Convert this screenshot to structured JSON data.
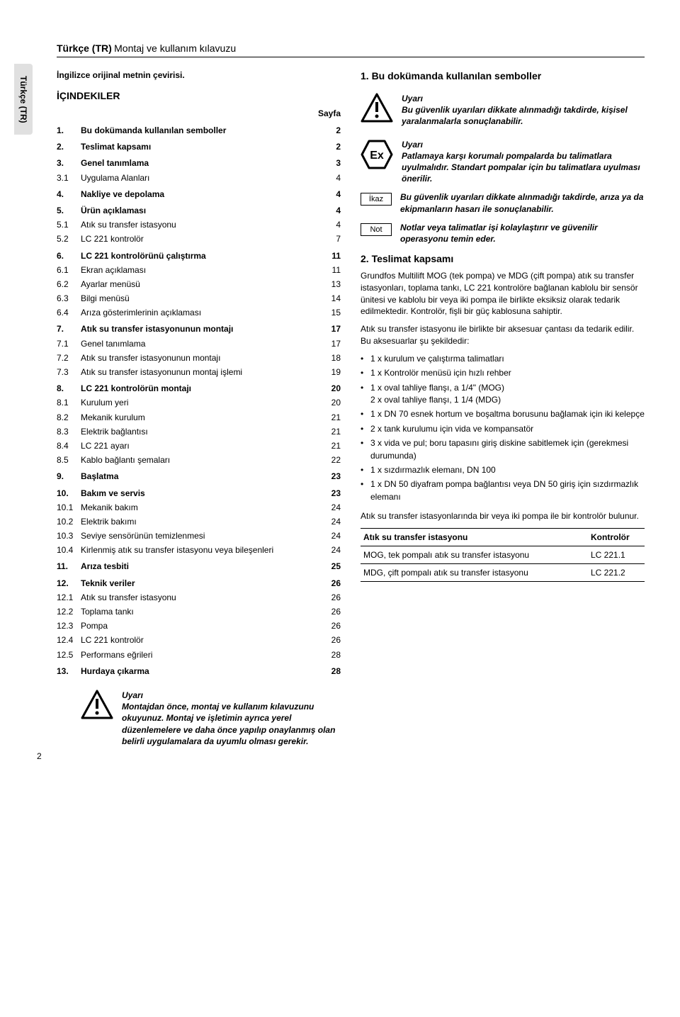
{
  "sidebar": {
    "label": "Türkçe (TR)"
  },
  "header": {
    "lang": "Türkçe (TR)",
    "title": "Montaj ve kullanım kılavuzu"
  },
  "left": {
    "subtitle": "İngilizce orijinal metnin çevirisi.",
    "toc_title": "İÇINDEKILER",
    "page_label": "Sayfa",
    "toc": [
      {
        "n": "1.",
        "t": "Bu dokümanda kullanılan semboller",
        "p": "2",
        "main": true
      },
      {
        "n": "2.",
        "t": "Teslimat kapsamı",
        "p": "2",
        "main": true
      },
      {
        "n": "3.",
        "t": "Genel tanımlama",
        "p": "3",
        "main": true
      },
      {
        "n": "3.1",
        "t": "Uygulama Alanları",
        "p": "4"
      },
      {
        "n": "4.",
        "t": "Nakliye ve depolama",
        "p": "4",
        "main": true
      },
      {
        "n": "5.",
        "t": "Ürün açıklaması",
        "p": "4",
        "main": true
      },
      {
        "n": "5.1",
        "t": "Atık su transfer istasyonu",
        "p": "4"
      },
      {
        "n": "5.2",
        "t": "LC 221 kontrolör",
        "p": "7"
      },
      {
        "n": "6.",
        "t": "LC 221 kontrolörünü çalıştırma",
        "p": "11",
        "main": true
      },
      {
        "n": "6.1",
        "t": "Ekran açıklaması",
        "p": "11"
      },
      {
        "n": "6.2",
        "t": "Ayarlar menüsü",
        "p": "13"
      },
      {
        "n": "6.3",
        "t": "Bilgi menüsü",
        "p": "14"
      },
      {
        "n": "6.4",
        "t": "Arıza gösterimlerinin açıklaması",
        "p": "15"
      },
      {
        "n": "7.",
        "t": "Atık su transfer istasyonunun montajı",
        "p": "17",
        "main": true
      },
      {
        "n": "7.1",
        "t": "Genel tanımlama",
        "p": "17"
      },
      {
        "n": "7.2",
        "t": "Atık su transfer istasyonunun montajı",
        "p": "18"
      },
      {
        "n": "7.3",
        "t": "Atık su transfer istasyonunun montaj işlemi",
        "p": "19"
      },
      {
        "n": "8.",
        "t": "LC 221 kontrolörün montajı",
        "p": "20",
        "main": true
      },
      {
        "n": "8.1",
        "t": "Kurulum yeri",
        "p": "20"
      },
      {
        "n": "8.2",
        "t": "Mekanik kurulum",
        "p": "21"
      },
      {
        "n": "8.3",
        "t": "Elektrik bağlantısı",
        "p": "21"
      },
      {
        "n": "8.4",
        "t": "LC 221 ayarı",
        "p": "21"
      },
      {
        "n": "8.5",
        "t": "Kablo bağlantı şemaları",
        "p": "22"
      },
      {
        "n": "9.",
        "t": "Başlatma",
        "p": "23",
        "main": true
      },
      {
        "n": "10.",
        "t": "Bakım ve servis",
        "p": "23",
        "main": true
      },
      {
        "n": "10.1",
        "t": "Mekanik bakım",
        "p": "24"
      },
      {
        "n": "10.2",
        "t": "Elektrik bakımı",
        "p": "24"
      },
      {
        "n": "10.3",
        "t": "Seviye sensörünün temizlenmesi",
        "p": "24"
      },
      {
        "n": "10.4",
        "t": "Kirlenmiş atık su transfer istasyonu veya bileşenleri",
        "p": "24"
      },
      {
        "n": "11.",
        "t": "Arıza tesbiti",
        "p": "25",
        "main": true
      },
      {
        "n": "12.",
        "t": "Teknik veriler",
        "p": "26",
        "main": true
      },
      {
        "n": "12.1",
        "t": "Atık su transfer istasyonu",
        "p": "26"
      },
      {
        "n": "12.2",
        "t": "Toplama tankı",
        "p": "26"
      },
      {
        "n": "12.3",
        "t": "Pompa",
        "p": "26"
      },
      {
        "n": "12.4",
        "t": "LC 221 kontrolör",
        "p": "26"
      },
      {
        "n": "12.5",
        "t": "Performans eğrileri",
        "p": "28"
      },
      {
        "n": "13.",
        "t": "Hurdaya çıkarma",
        "p": "28",
        "main": true
      }
    ],
    "warning": {
      "title": "Uyarı",
      "body": "Montajdan önce, montaj ve kullanım kılavuzunu okuyunuz. Montaj ve işletimin ayrıca yerel düzenlemelere ve daha önce yapılıp onaylanmış olan belirli uygulamalara da uyumlu olması gerekir."
    }
  },
  "right": {
    "h1": "1. Bu dokümanda kullanılan semboller",
    "warn1": {
      "title": "Uyarı",
      "body": "Bu güvenlik uyarıları dikkate alınmadığı takdirde, kişisel yaralanmalarla sonuçlanabilir."
    },
    "warn2": {
      "title": "Uyarı",
      "body": "Patlamaya karşı korumalı pompalarda bu talimatlara uyulmalıdır. Standart pompalar için bu talimatlara uyulması önerilir."
    },
    "ikaz": {
      "label": "İkaz",
      "body": "Bu güvenlik uyarıları dikkate alınmadığı takdirde, arıza ya da ekipmanların hasarı ile sonuçlanabilir."
    },
    "not": {
      "label": "Not",
      "body": "Notlar veya talimatlar işi kolaylaştırır ve güvenilir operasyonu temin eder."
    },
    "h2": "2. Teslimat kapsamı",
    "para1": "Grundfos Multilift MOG (tek pompa) ve MDG (çift pompa) atık su transfer istasyonları, toplama tankı, LC 221 kontrolöre bağlanan kablolu bir sensör ünitesi ve kablolu bir veya iki pompa ile birlikte eksiksiz olarak tedarik edilmektedir. Kontrolör, fişli bir güç kablosuna sahiptir.",
    "para2": "Atık su transfer istasyonu ile birlikte bir aksesuar çantası da tedarik edilir. Bu aksesuarlar şu şekildedir:",
    "bullets": [
      "1 x kurulum ve çalıştırma talimatları",
      "1 x Kontrolör menüsü için hızlı rehber",
      "1 x oval tahliye flanşı, a 1/4\" (MOG)\n2 x oval tahliye flanşı, 1 1/4 (MDG)",
      "1 x DN 70 esnek hortum ve boşaltma borusunu bağlamak için iki kelepçe",
      "2 x tank kurulumu için vida ve kompansatör",
      "3 x vida ve pul; boru tapasını giriş diskine sabitlemek için (gerekmesi durumunda)",
      "1 x sızdırmazlık elemanı, DN 100",
      "1 x DN 50 diyafram pompa bağlantısı veya DN 50 giriş için sızdırmazlık elemanı"
    ],
    "para3": "Atık su transfer istasyonlarında bir veya iki pompa ile bir kontrolör bulunur.",
    "table": {
      "headers": [
        "Atık su transfer istasyonu",
        "Kontrolör"
      ],
      "rows": [
        [
          "MOG, tek pompalı atık su transfer istasyonu",
          "LC 221.1"
        ],
        [
          "MDG, çift pompalı atık su transfer istasyonu",
          "LC 221.2"
        ]
      ]
    }
  },
  "page_number": "2"
}
